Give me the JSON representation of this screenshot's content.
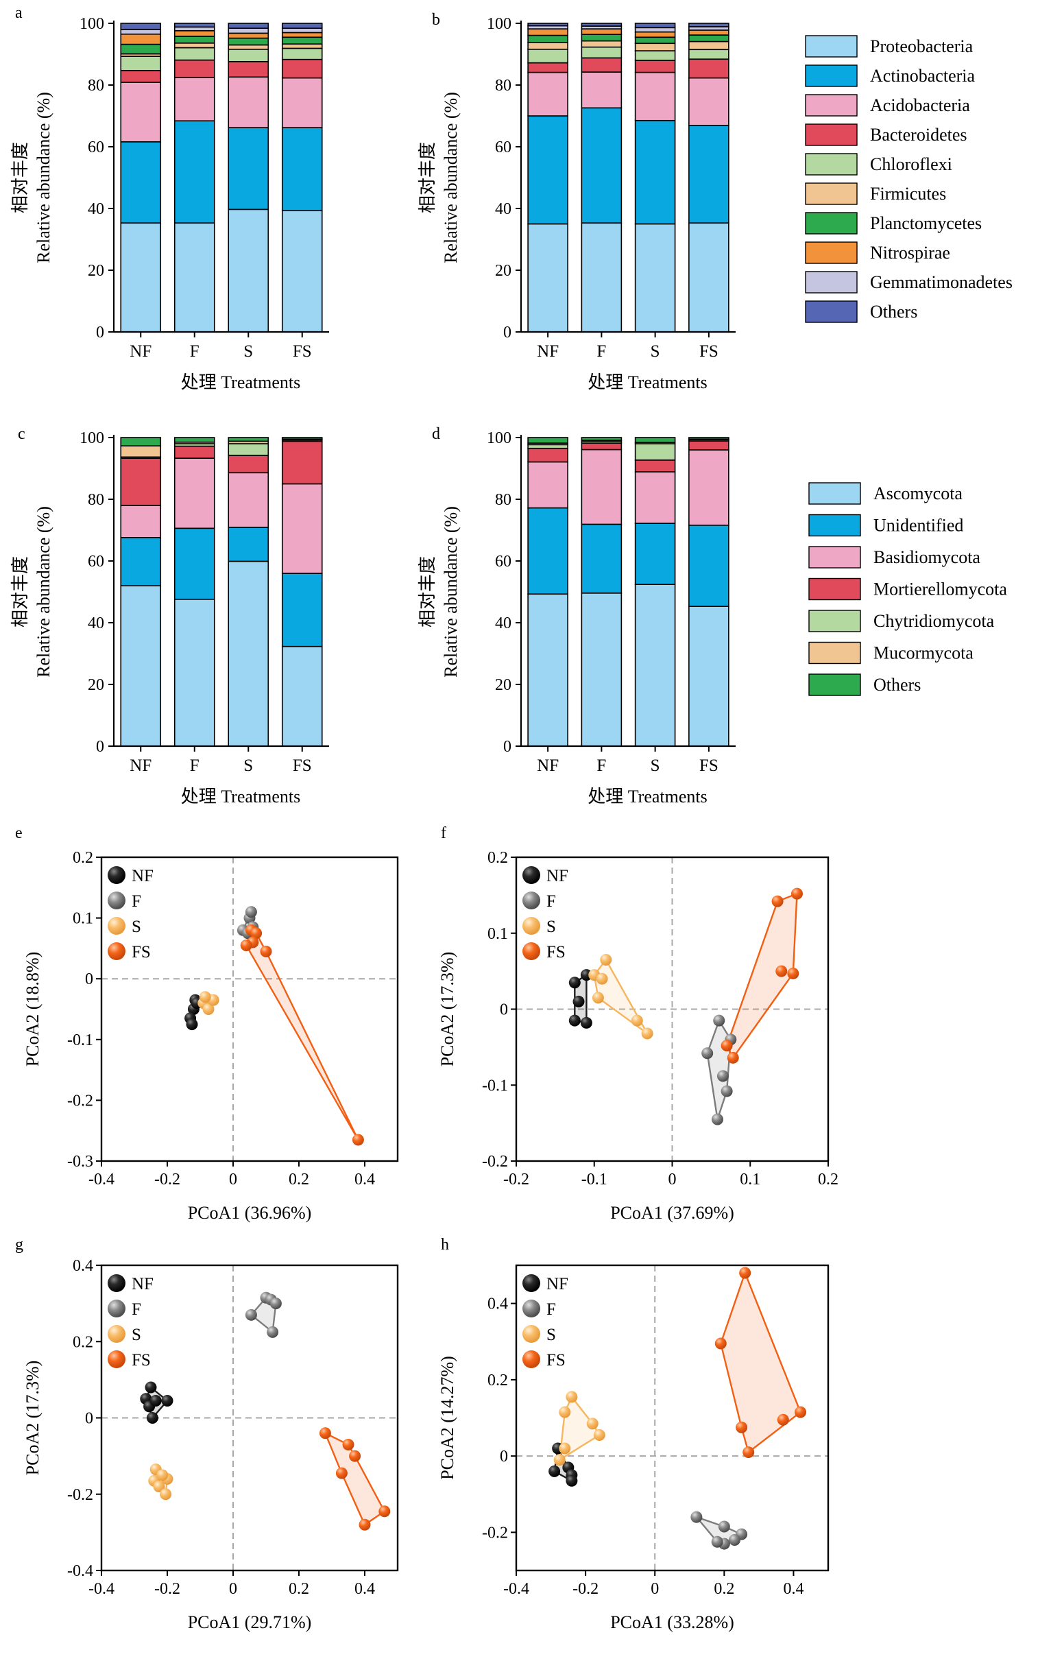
{
  "colors": {
    "Proteobacteria": "#9dd6f2",
    "Actinobacteria": "#0aa8e0",
    "Acidobacteria": "#eea8c6",
    "Bacteroidetes": "#e04a5a",
    "Chloroflexi": "#b4d9a0",
    "Firmicutes": "#f1c592",
    "Planctomycetes": "#2daa4e",
    "Nitrospirae": "#f2923b",
    "Gemmatimonadetes": "#c5c5e1",
    "Others_b": "#5566b4",
    "Ascomycota": "#9dd6f2",
    "Unidentified": "#0aa8e0",
    "Basidiomycota": "#eea8c6",
    "Mortierellomycota": "#e04a5a",
    "Chytridiomycota": "#b4d9a0",
    "Mucormycota": "#f1c592",
    "Others_f": "#2daa4e",
    "NF": "#1e1e1e",
    "F": "#7c7c7c",
    "S": "#f7b55e",
    "FS": "#f25f13"
  },
  "chart_data": [
    {
      "panel": "a",
      "type": "bar",
      "stacked": true,
      "categories": [
        "NF",
        "F",
        "S",
        "FS"
      ],
      "xlabel": "处理 Treatments",
      "ylabel_cn": "相对丰度",
      "ylabel": "Relative abundance (%)",
      "ylim": [
        0,
        100
      ],
      "yticks": [
        0,
        20,
        40,
        60,
        80,
        100
      ],
      "series": [
        {
          "name": "Proteobacteria",
          "values": [
            35.3,
            35.3,
            39.7,
            39.3
          ]
        },
        {
          "name": "Actinobacteria",
          "values": [
            26.3,
            33.1,
            26.5,
            26.9
          ]
        },
        {
          "name": "Acidobacteria",
          "values": [
            19.3,
            14.0,
            16.4,
            16.1
          ]
        },
        {
          "name": "Bacteroidetes",
          "values": [
            3.8,
            5.7,
            5.0,
            6.0
          ]
        },
        {
          "name": "Chloroflexi",
          "values": [
            4.6,
            4.0,
            4.0,
            3.6
          ]
        },
        {
          "name": "Firmicutes",
          "values": [
            0.8,
            1.5,
            1.4,
            1.4
          ]
        },
        {
          "name": "Planctomycetes",
          "values": [
            3.1,
            2.2,
            2.2,
            2.2
          ]
        },
        {
          "name": "Nitrospirae",
          "values": [
            3.3,
            1.8,
            1.6,
            1.5
          ]
        },
        {
          "name": "Gemmatimonadetes",
          "values": [
            1.5,
            1.2,
            1.6,
            1.4
          ]
        },
        {
          "name": "Others",
          "values": [
            2.0,
            1.2,
            1.6,
            1.6
          ]
        }
      ]
    },
    {
      "panel": "b",
      "type": "bar",
      "stacked": true,
      "categories": [
        "NF",
        "F",
        "S",
        "FS"
      ],
      "xlabel": "处理 Treatments",
      "ylabel_cn": "相对丰度",
      "ylabel": "Relative abundance (%)",
      "ylim": [
        0,
        100
      ],
      "yticks": [
        0,
        20,
        40,
        60,
        80,
        100
      ],
      "series": [
        {
          "name": "Proteobacteria",
          "values": [
            35.0,
            35.3,
            35.0,
            35.3
          ]
        },
        {
          "name": "Actinobacteria",
          "values": [
            35.0,
            37.3,
            33.5,
            31.6
          ]
        },
        {
          "name": "Acidobacteria",
          "values": [
            14.1,
            11.6,
            15.6,
            15.4
          ]
        },
        {
          "name": "Bacteroidetes",
          "values": [
            3.1,
            4.6,
            3.9,
            6.1
          ]
        },
        {
          "name": "Chloroflexi",
          "values": [
            4.4,
            3.5,
            3.1,
            3.1
          ]
        },
        {
          "name": "Firmicutes",
          "values": [
            2.2,
            2.0,
            2.4,
            2.6
          ]
        },
        {
          "name": "Planctomycetes",
          "values": [
            2.3,
            2.1,
            2.0,
            2.1
          ]
        },
        {
          "name": "Nitrospirae",
          "values": [
            2.1,
            1.8,
            1.7,
            1.6
          ]
        },
        {
          "name": "Gemmatimonadetes",
          "values": [
            1.0,
            0.9,
            1.4,
            1.1
          ]
        },
        {
          "name": "Others",
          "values": [
            0.8,
            0.9,
            1.4,
            1.1
          ]
        }
      ]
    },
    {
      "panel": "c",
      "type": "bar",
      "stacked": true,
      "categories": [
        "NF",
        "F",
        "S",
        "FS"
      ],
      "xlabel": "处理 Treatments",
      "ylabel_cn": "相对丰度",
      "ylabel": "Relative abundance (%)",
      "ylim": [
        0,
        100
      ],
      "yticks": [
        0,
        20,
        40,
        60,
        80,
        100
      ],
      "series": [
        {
          "name": "Ascomycota",
          "values": [
            52.0,
            47.6,
            59.9,
            32.3
          ]
        },
        {
          "name": "Unidentified",
          "values": [
            15.6,
            23.0,
            11.0,
            23.7
          ]
        },
        {
          "name": "Basidiomycota",
          "values": [
            10.4,
            22.7,
            17.7,
            29.0
          ]
        },
        {
          "name": "Mortierellomycota",
          "values": [
            15.3,
            3.9,
            5.6,
            13.8
          ]
        },
        {
          "name": "Chytridiomycota",
          "values": [
            0.4,
            0.8,
            3.8,
            0.4
          ]
        },
        {
          "name": "Mucormycota",
          "values": [
            3.6,
            0.5,
            0.8,
            0.3
          ]
        },
        {
          "name": "Others",
          "values": [
            2.7,
            1.5,
            1.2,
            0.5
          ]
        }
      ]
    },
    {
      "panel": "d",
      "type": "bar",
      "stacked": true,
      "categories": [
        "NF",
        "F",
        "S",
        "FS"
      ],
      "xlabel": "处理 Treatments",
      "ylabel_cn": "相对丰度",
      "ylabel": "Relative abundance (%)",
      "ylim": [
        0,
        100
      ],
      "yticks": [
        0,
        20,
        40,
        60,
        80,
        100
      ],
      "series": [
        {
          "name": "Ascomycota",
          "values": [
            49.3,
            49.6,
            52.4,
            45.3
          ]
        },
        {
          "name": "Unidentified",
          "values": [
            27.9,
            22.3,
            19.8,
            26.3
          ]
        },
        {
          "name": "Basidiomycota",
          "values": [
            14.9,
            24.2,
            16.7,
            24.4
          ]
        },
        {
          "name": "Mortierellomycota",
          "values": [
            4.4,
            2.1,
            3.8,
            2.9
          ]
        },
        {
          "name": "Chytridiomycota",
          "values": [
            1.2,
            0.6,
            5.3,
            0.4
          ]
        },
        {
          "name": "Mucormycota",
          "values": [
            0.5,
            0.3,
            0.4,
            0.2
          ]
        },
        {
          "name": "Others",
          "values": [
            1.8,
            0.9,
            1.6,
            0.5
          ]
        }
      ]
    },
    {
      "panel": "e",
      "type": "scatter",
      "xlabel": "PCoA1 (36.96%)",
      "ylabel": "PCoA2 (18.8%)",
      "xlim": [
        -0.4,
        0.5
      ],
      "ylim": [
        -0.3,
        0.2
      ],
      "xticks": [
        -0.4,
        -0.2,
        0,
        0.2,
        0.4
      ],
      "yticks": [
        -0.3,
        -0.2,
        -0.1,
        0,
        0.1,
        0.2
      ],
      "series": [
        {
          "name": "NF",
          "points": [
            [
              -0.115,
              -0.035
            ],
            [
              -0.12,
              -0.05
            ],
            [
              -0.13,
              -0.065
            ],
            [
              -0.125,
              -0.075
            ],
            [
              -0.11,
              -0.04
            ]
          ]
        },
        {
          "name": "F",
          "points": [
            [
              0.05,
              0.1
            ],
            [
              0.055,
              0.11
            ],
            [
              0.03,
              0.08
            ],
            [
              0.045,
              0.075
            ],
            [
              0.06,
              0.085
            ]
          ]
        },
        {
          "name": "S",
          "points": [
            [
              -0.07,
              -0.035
            ],
            [
              -0.09,
              -0.04
            ],
            [
              -0.075,
              -0.05
            ],
            [
              -0.06,
              -0.035
            ],
            [
              -0.085,
              -0.03
            ]
          ]
        },
        {
          "name": "FS",
          "points": [
            [
              0.055,
              0.08
            ],
            [
              0.07,
              0.075
            ],
            [
              0.06,
              0.06
            ],
            [
              0.04,
              0.055
            ],
            [
              0.1,
              0.045
            ],
            [
              0.38,
              -0.265
            ]
          ]
        }
      ]
    },
    {
      "panel": "f",
      "type": "scatter",
      "xlabel": "PCoA1 (37.69%)",
      "ylabel": "PCoA2 (17.3%)",
      "xlim": [
        -0.2,
        0.2
      ],
      "ylim": [
        -0.2,
        0.2
      ],
      "xticks": [
        -0.2,
        -0.1,
        0,
        0.1,
        0.2
      ],
      "yticks": [
        -0.2,
        -0.1,
        0,
        0.1,
        0.2
      ],
      "series": [
        {
          "name": "NF",
          "points": [
            [
              -0.11,
              0.045
            ],
            [
              -0.125,
              0.035
            ],
            [
              -0.12,
              0.01
            ],
            [
              -0.125,
              -0.015
            ],
            [
              -0.11,
              -0.018
            ]
          ]
        },
        {
          "name": "F",
          "points": [
            [
              0.06,
              -0.015
            ],
            [
              0.045,
              -0.058
            ],
            [
              0.075,
              -0.04
            ],
            [
              0.065,
              -0.088
            ],
            [
              0.07,
              -0.108
            ],
            [
              0.058,
              -0.145
            ]
          ]
        },
        {
          "name": "S",
          "points": [
            [
              -0.085,
              0.065
            ],
            [
              -0.1,
              0.045
            ],
            [
              -0.09,
              0.04
            ],
            [
              -0.095,
              0.015
            ],
            [
              -0.045,
              -0.015
            ],
            [
              -0.032,
              -0.032
            ]
          ]
        },
        {
          "name": "FS",
          "points": [
            [
              0.135,
              0.142
            ],
            [
              0.16,
              0.152
            ],
            [
              0.14,
              0.05
            ],
            [
              0.155,
              0.047
            ],
            [
              0.07,
              -0.048
            ],
            [
              0.078,
              -0.064
            ]
          ]
        }
      ]
    },
    {
      "panel": "g",
      "type": "scatter",
      "xlabel": "PCoA1 (29.71%)",
      "ylabel": "PCoA2 (17.3%)",
      "xlim": [
        -0.4,
        0.5
      ],
      "ylim": [
        -0.4,
        0.4
      ],
      "xticks": [
        -0.4,
        -0.2,
        0,
        0.2,
        0.4
      ],
      "yticks": [
        -0.4,
        -0.2,
        0,
        0.2,
        0.4
      ],
      "series": [
        {
          "name": "NF",
          "points": [
            [
              -0.25,
              0.08
            ],
            [
              -0.265,
              0.05
            ],
            [
              -0.255,
              0.03
            ],
            [
              -0.235,
              0.045
            ],
            [
              -0.2,
              0.045
            ],
            [
              -0.245,
              0.0
            ]
          ]
        },
        {
          "name": "F",
          "points": [
            [
              0.1,
              0.315
            ],
            [
              0.115,
              0.31
            ],
            [
              0.13,
              0.3
            ],
            [
              0.055,
              0.27
            ],
            [
              0.12,
              0.225
            ]
          ]
        },
        {
          "name": "S",
          "points": [
            [
              -0.235,
              -0.135
            ],
            [
              -0.24,
              -0.165
            ],
            [
              -0.225,
              -0.18
            ],
            [
              -0.2,
              -0.16
            ],
            [
              -0.215,
              -0.15
            ],
            [
              -0.205,
              -0.2
            ]
          ]
        },
        {
          "name": "FS",
          "points": [
            [
              0.28,
              -0.04
            ],
            [
              0.35,
              -0.07
            ],
            [
              0.37,
              -0.1
            ],
            [
              0.33,
              -0.145
            ],
            [
              0.46,
              -0.245
            ],
            [
              0.4,
              -0.28
            ]
          ]
        }
      ]
    },
    {
      "panel": "h",
      "type": "scatter",
      "xlabel": "PCoA1 (33.28%)",
      "ylabel": "PCoA2 (14.27%)",
      "xlim": [
        -0.4,
        0.5
      ],
      "ylim": [
        -0.3,
        0.5
      ],
      "xticks": [
        -0.4,
        -0.2,
        0,
        0.2,
        0.4
      ],
      "yticks": [
        -0.2,
        0,
        0.2,
        0.4
      ],
      "series": [
        {
          "name": "NF",
          "points": [
            [
              -0.28,
              0.02
            ],
            [
              -0.29,
              -0.04
            ],
            [
              -0.25,
              -0.03
            ],
            [
              -0.24,
              -0.05
            ],
            [
              -0.24,
              -0.065
            ]
          ]
        },
        {
          "name": "F",
          "points": [
            [
              0.12,
              -0.16
            ],
            [
              0.2,
              -0.185
            ],
            [
              0.25,
              -0.205
            ],
            [
              0.23,
              -0.22
            ],
            [
              0.2,
              -0.23
            ],
            [
              0.18,
              -0.225
            ]
          ]
        },
        {
          "name": "S",
          "points": [
            [
              -0.24,
              0.155
            ],
            [
              -0.26,
              0.115
            ],
            [
              -0.18,
              0.085
            ],
            [
              -0.16,
              0.055
            ],
            [
              -0.26,
              0.02
            ],
            [
              -0.275,
              -0.01
            ]
          ]
        },
        {
          "name": "FS",
          "points": [
            [
              0.26,
              0.48
            ],
            [
              0.19,
              0.295
            ],
            [
              0.42,
              0.115
            ],
            [
              0.37,
              0.095
            ],
            [
              0.25,
              0.075
            ],
            [
              0.27,
              0.01
            ]
          ]
        }
      ]
    }
  ],
  "panel_labels": [
    "a",
    "b",
    "c",
    "d",
    "e",
    "f",
    "g",
    "h"
  ],
  "legend_bacteria": [
    "Proteobacteria",
    "Actinobacteria",
    "Acidobacteria",
    "Bacteroidetes",
    "Chloroflexi",
    "Firmicutes",
    "Planctomycetes",
    "Nitrospirae",
    "Gemmatimonadetes",
    "Others"
  ],
  "legend_fungi": [
    "Ascomycota",
    "Unidentified",
    "Basidiomycota",
    "Mortierellomycota",
    "Chytridiomycota",
    "Mucormycota",
    "Others"
  ],
  "legend_groups": [
    "NF",
    "F",
    "S",
    "FS"
  ]
}
